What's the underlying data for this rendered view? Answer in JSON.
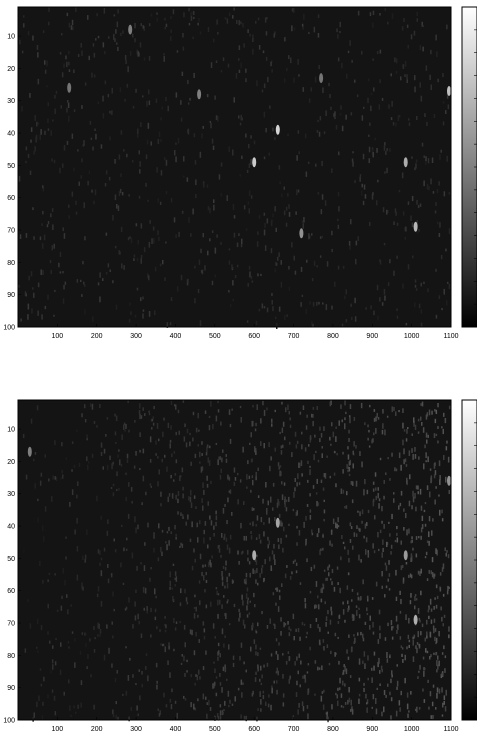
{
  "chart_data": [
    {
      "type": "heatmap",
      "colormap": "gray",
      "background": "near-black",
      "grid": false,
      "colorbar": "right",
      "xlim": [
        0,
        1100
      ],
      "ylim": [
        100,
        1
      ],
      "x_ticks": [
        "100",
        "200",
        "300",
        "400",
        "500",
        "600",
        "700",
        "800",
        "900",
        "1000",
        "1100"
      ],
      "y_ticks": [
        "10",
        "20",
        "30",
        "40",
        "50",
        "60",
        "70",
        "80",
        "90",
        "100"
      ],
      "highlights": [
        {
          "x": 285,
          "y": 8,
          "intensity": 0.35
        },
        {
          "x": 460,
          "y": 28,
          "intensity": 0.35
        },
        {
          "x": 660,
          "y": 39,
          "intensity": 0.8
        },
        {
          "x": 600,
          "y": 49,
          "intensity": 0.75
        },
        {
          "x": 985,
          "y": 49,
          "intensity": 0.6
        },
        {
          "x": 1010,
          "y": 69,
          "intensity": 0.65
        },
        {
          "x": 720,
          "y": 71,
          "intensity": 0.45
        },
        {
          "x": 1100,
          "y": 27,
          "intensity": 0.7
        },
        {
          "x": 770,
          "y": 23,
          "intensity": 0.3
        },
        {
          "x": 130,
          "y": 26,
          "intensity": 0.3
        }
      ]
    },
    {
      "type": "heatmap",
      "colormap": "gray",
      "background": "near-black with lighter noise on the right",
      "grid": false,
      "colorbar": "right",
      "xlim": [
        0,
        1100
      ],
      "ylim": [
        100,
        1
      ],
      "x_ticks": [
        "100",
        "200",
        "300",
        "400",
        "500",
        "600",
        "700",
        "800",
        "900",
        "1000",
        "1100"
      ],
      "y_ticks": [
        "10",
        "20",
        "30",
        "40",
        "50",
        "60",
        "70",
        "80",
        "90",
        "100"
      ],
      "highlights": [
        {
          "x": 660,
          "y": 39,
          "intensity": 0.55
        },
        {
          "x": 600,
          "y": 49,
          "intensity": 0.6
        },
        {
          "x": 985,
          "y": 49,
          "intensity": 0.5
        },
        {
          "x": 1010,
          "y": 69,
          "intensity": 0.6
        },
        {
          "x": 1100,
          "y": 26,
          "intensity": 0.45
        },
        {
          "x": 30,
          "y": 17,
          "intensity": 0.35
        }
      ]
    }
  ]
}
